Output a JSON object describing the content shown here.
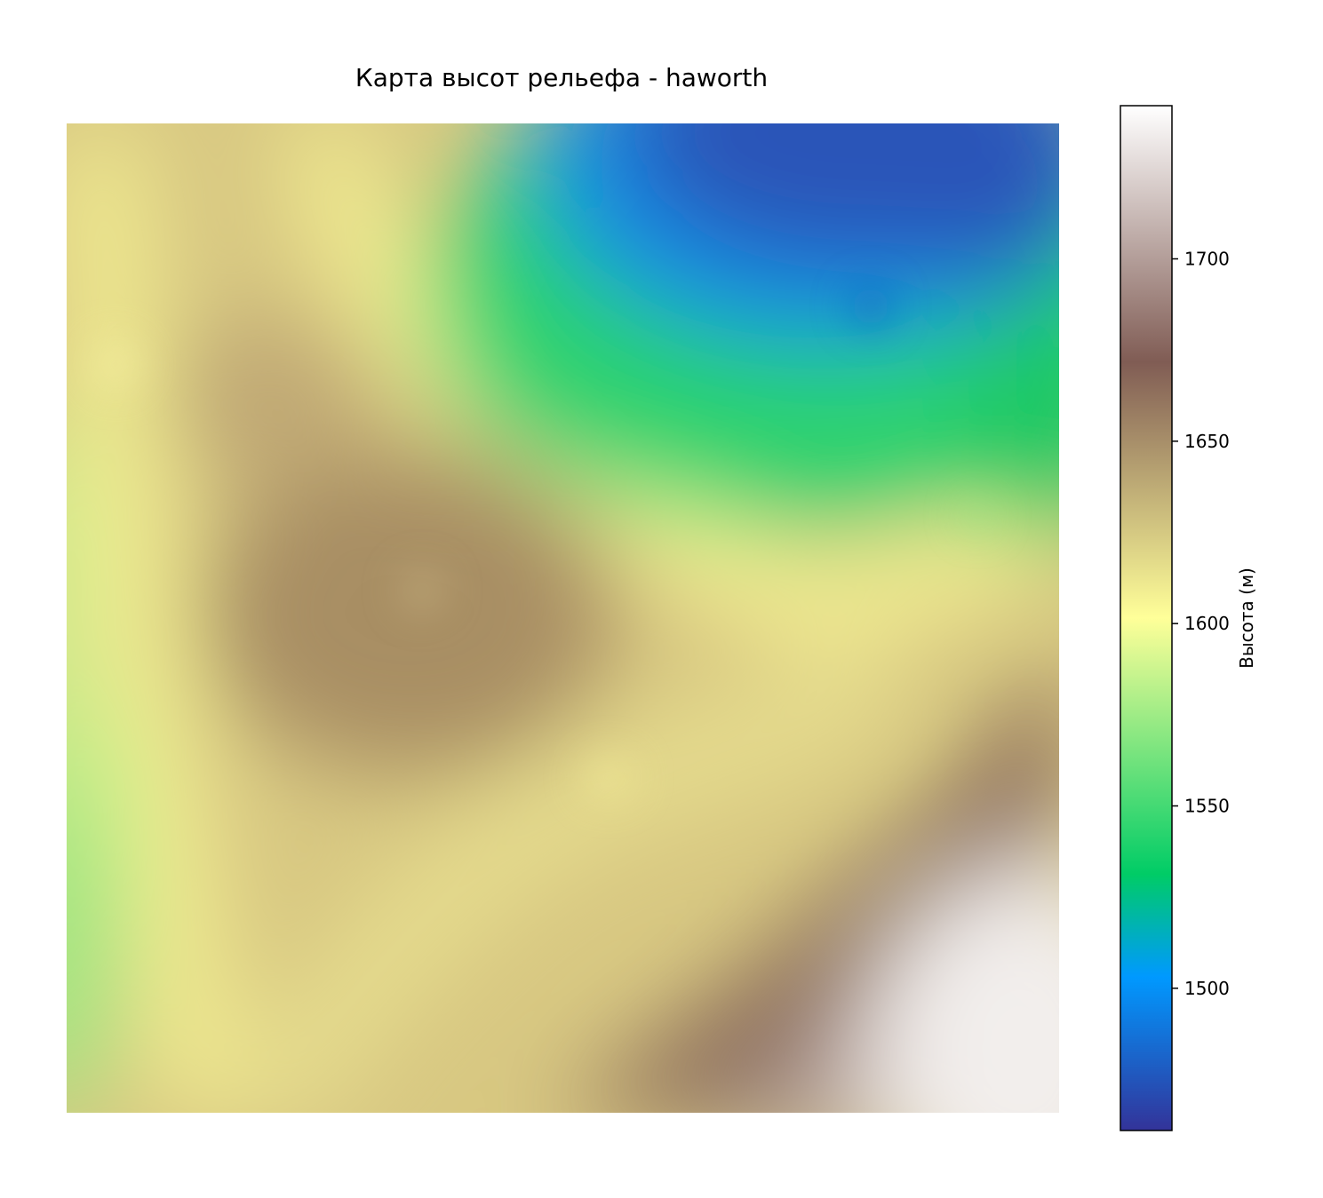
{
  "chart_data": {
    "type": "heatmap",
    "title": "Карта высот рельефа - haworth",
    "colorbar": {
      "label": "Высота (м)",
      "range": [
        1461,
        1742
      ],
      "ticks": [
        1500,
        1550,
        1600,
        1650,
        1700
      ],
      "tick_labels": [
        "1500",
        "1550",
        "1600",
        "1650",
        "1700"
      ],
      "colormap": "terrain",
      "colormap_stops": [
        {
          "v": 0.0,
          "color": "#333399"
        },
        {
          "v": 0.15,
          "color": "#0099ff"
        },
        {
          "v": 0.25,
          "color": "#00cc66"
        },
        {
          "v": 0.5,
          "color": "#ffff99"
        },
        {
          "v": 0.75,
          "color": "#805c54"
        },
        {
          "v": 1.0,
          "color": "#ffffff"
        }
      ]
    },
    "axes_visible": false
  }
}
